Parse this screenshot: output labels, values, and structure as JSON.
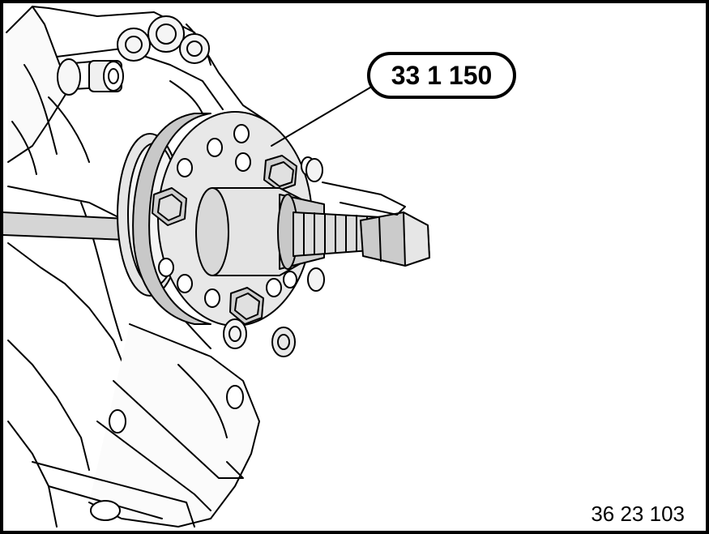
{
  "figure": {
    "tool_label": "33 1 150",
    "figure_number": "36 23 103"
  },
  "colors": {
    "line": "#000000",
    "light_fill": "#f2f2f2",
    "mid_fill": "#d9d9d9",
    "dark_fill": "#bdbdbd",
    "background": "#ffffff"
  }
}
